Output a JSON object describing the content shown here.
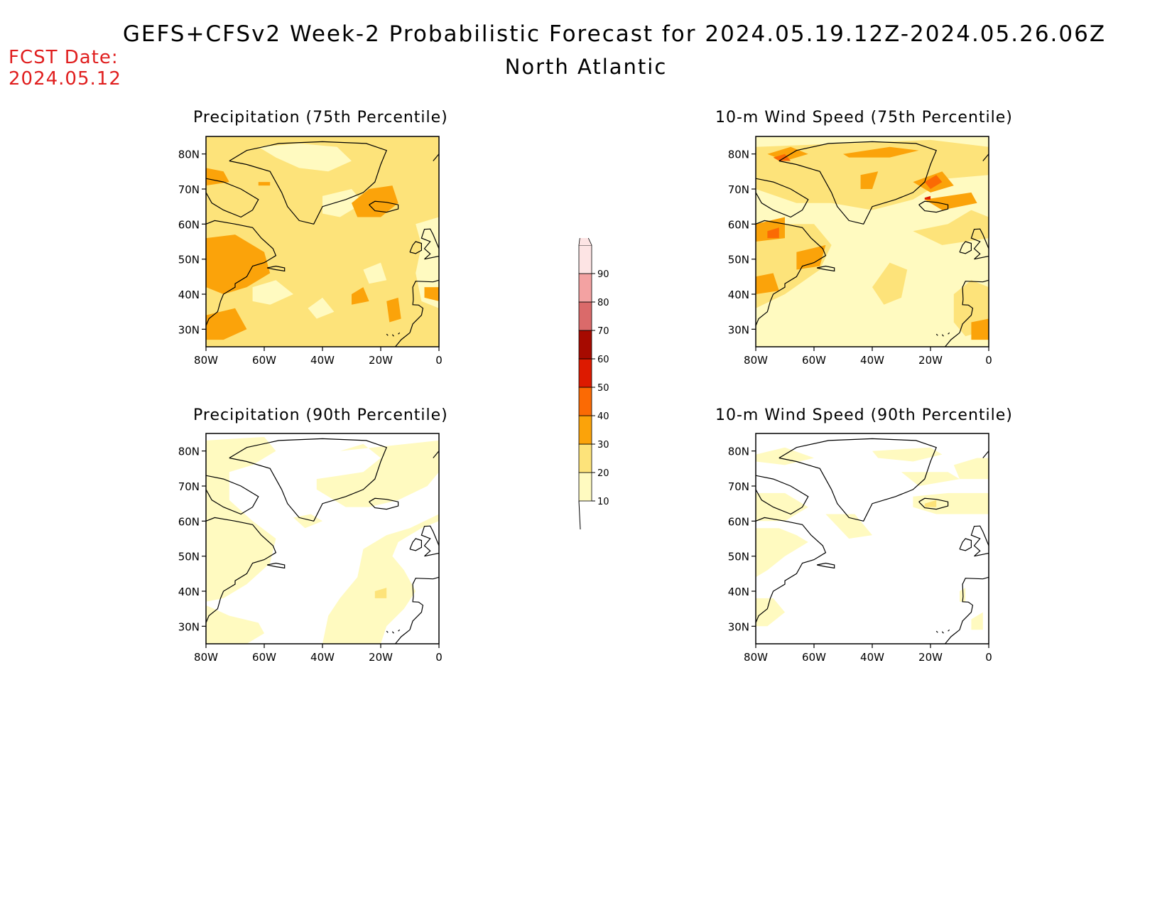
{
  "header": {
    "title": "GEFS+CFSv2 Week-2 Probabilistic Forecast for 2024.05.19.12Z-2024.05.26.06Z",
    "subtitle": "North Atlantic",
    "fcst_label": "FCST Date:",
    "fcst_date": "2024.05.12"
  },
  "colors": {
    "10": "#fffac0",
    "20": "#fde37a",
    "30": "#fba30a",
    "40": "#fb6a04",
    "50": "#dd1a00",
    "60": "#a60a00",
    "70": "#da6a6a",
    "80": "#f3a2a2",
    "90": "#fde4e4"
  },
  "axes": {
    "lat_ticks": [
      "80N",
      "70N",
      "60N",
      "50N",
      "40N",
      "30N"
    ],
    "lon_ticks": [
      "80W",
      "60W",
      "40W",
      "20W",
      "0"
    ]
  },
  "panels": [
    {
      "id": "p75",
      "title": "Precipitation (75th Percentile)",
      "base": "20"
    },
    {
      "id": "w75",
      "title": "10-m Wind Speed (75th Percentile)",
      "base": "10"
    },
    {
      "id": "p90",
      "title": "Precipitation (90th Percentile)",
      "base": "white"
    },
    {
      "id": "w90",
      "title": "10-m Wind Speed (90th Percentile)",
      "base": "white"
    }
  ],
  "colorbar": {
    "levels": [
      "10",
      "20",
      "30",
      "40",
      "50",
      "60",
      "70",
      "80",
      "90"
    ]
  }
}
